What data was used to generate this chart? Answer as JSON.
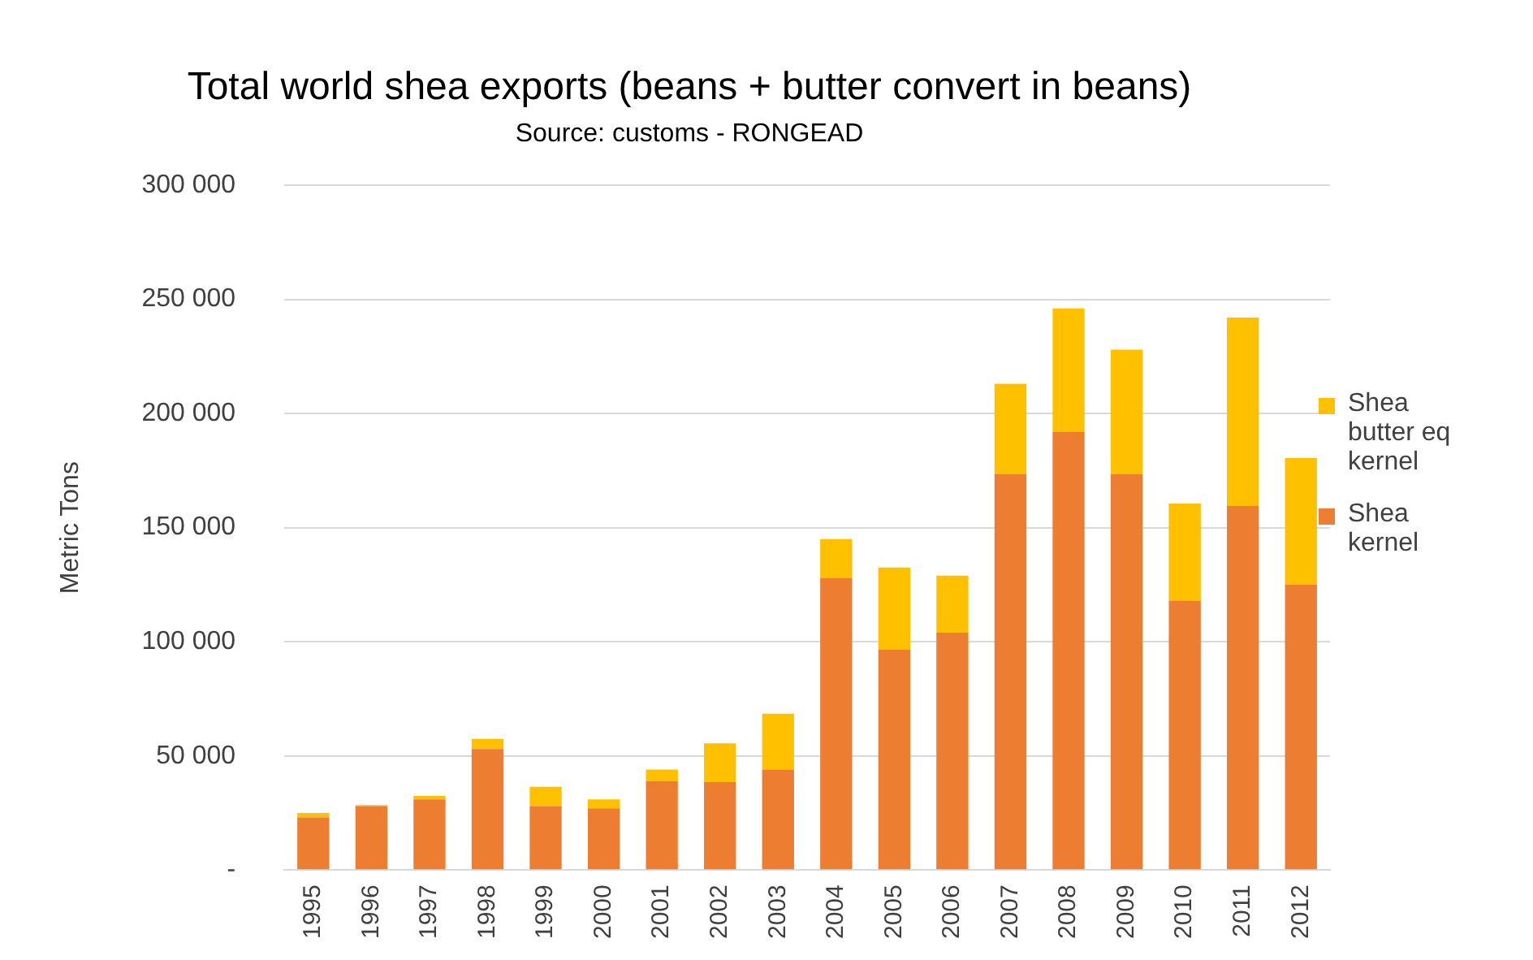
{
  "chart_data": {
    "type": "bar",
    "title": "Total world shea exports (beans + butter convert in beans)",
    "subtitle": "Source: customs - RONGEAD",
    "ylabel": "Metric Tons",
    "categories": [
      "1995",
      "1996",
      "1997",
      "1998",
      "1999",
      "2000",
      "2001",
      "2002",
      "2003",
      "2004",
      "2005",
      "2006",
      "2007",
      "2008",
      "2009",
      "2010",
      "2011",
      "2012"
    ],
    "stacked": true,
    "series": [
      {
        "name": "Shea kernel",
        "color": "#ed7d31",
        "values": [
          23000,
          28000,
          31000,
          53000,
          28000,
          27000,
          39000,
          38500,
          44000,
          128000,
          96500,
          104000,
          173500,
          192000,
          173500,
          118000,
          159500,
          125000
        ]
      },
      {
        "name": "Shea butter eq kernel",
        "color": "#ffc000",
        "values": [
          2000,
          500,
          1500,
          4500,
          8500,
          4000,
          5000,
          17000,
          24500,
          17000,
          36000,
          25000,
          39500,
          54000,
          54500,
          42500,
          82500,
          55500
        ]
      }
    ],
    "ylim": [
      0,
      300000
    ],
    "yticks": [
      {
        "value": 0,
        "label": "-"
      },
      {
        "value": 50000,
        "label": "50 000"
      },
      {
        "value": 100000,
        "label": "100 000"
      },
      {
        "value": 150000,
        "label": "150 000"
      },
      {
        "value": 200000,
        "label": "200 000"
      },
      {
        "value": 250000,
        "label": "250 000"
      },
      {
        "value": 300000,
        "label": "300 000"
      }
    ],
    "grid": "y",
    "legend": "right"
  }
}
